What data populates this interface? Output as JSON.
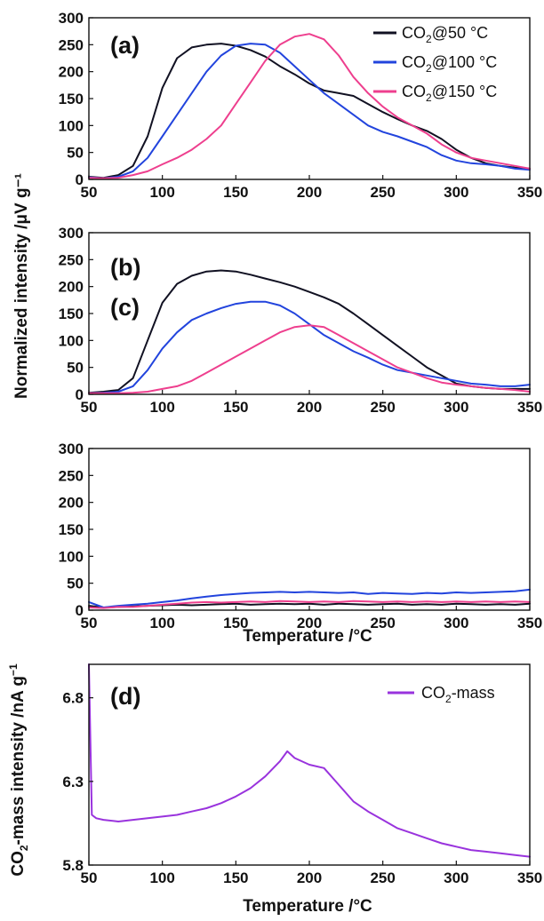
{
  "figure": {
    "ylabel_top": "Normalized intensity /μV g⁻¹",
    "ylabel_bottom_parts": [
      "CO",
      "2",
      "-mass intensity /nA g",
      "−1"
    ],
    "xlabel": "Temperature /°C"
  },
  "colors": {
    "co2_50": "#111122",
    "co2_100": "#2244dd",
    "co2_150": "#ee3f8e",
    "mass": "#9933dd"
  },
  "chart_data": [
    {
      "type": "line",
      "panel_label": "(a)",
      "xlim": [
        50,
        350
      ],
      "ylim": [
        0,
        300
      ],
      "xticks": [
        "50",
        "100",
        "150",
        "200",
        "250",
        "300",
        "350"
      ],
      "yticks": [
        "0",
        "50",
        "100",
        "150",
        "200",
        "250",
        "300"
      ],
      "legend": {
        "placement": "top-right"
      },
      "series": [
        {
          "name": "CO2@50 °C",
          "name_parts": [
            "CO",
            "2",
            "@50 °C"
          ],
          "color": "#111122",
          "x": [
            50,
            60,
            70,
            80,
            90,
            100,
            110,
            120,
            130,
            140,
            150,
            160,
            170,
            180,
            190,
            200,
            210,
            220,
            230,
            240,
            250,
            260,
            270,
            280,
            290,
            300,
            310,
            320,
            330,
            340,
            350
          ],
          "y": [
            5,
            3,
            8,
            25,
            80,
            170,
            225,
            245,
            250,
            252,
            248,
            240,
            228,
            210,
            195,
            178,
            165,
            160,
            155,
            140,
            125,
            112,
            100,
            90,
            75,
            55,
            40,
            30,
            25,
            22,
            20
          ]
        },
        {
          "name": "CO2@100 °C",
          "name_parts": [
            "CO",
            "2",
            "@100 °C"
          ],
          "color": "#2244dd",
          "x": [
            50,
            60,
            70,
            80,
            90,
            100,
            110,
            120,
            130,
            140,
            150,
            160,
            170,
            180,
            190,
            200,
            210,
            220,
            230,
            240,
            250,
            260,
            270,
            280,
            290,
            300,
            310,
            320,
            330,
            340,
            350
          ],
          "y": [
            4,
            2,
            5,
            15,
            40,
            80,
            120,
            160,
            200,
            230,
            248,
            252,
            250,
            235,
            210,
            185,
            160,
            140,
            120,
            100,
            88,
            80,
            70,
            60,
            45,
            35,
            30,
            28,
            25,
            20,
            18
          ]
        },
        {
          "name": "CO2@150 °C",
          "name_parts": [
            "CO",
            "2",
            "@150 °C"
          ],
          "color": "#ee3f8e",
          "x": [
            50,
            60,
            70,
            80,
            90,
            100,
            110,
            120,
            130,
            140,
            150,
            160,
            170,
            180,
            190,
            200,
            210,
            220,
            230,
            240,
            250,
            260,
            270,
            280,
            290,
            300,
            310,
            320,
            330,
            340,
            350
          ],
          "y": [
            3,
            2,
            3,
            8,
            15,
            28,
            40,
            55,
            75,
            100,
            140,
            180,
            220,
            250,
            265,
            270,
            260,
            230,
            190,
            160,
            135,
            115,
            100,
            85,
            65,
            50,
            40,
            35,
            30,
            25,
            20
          ]
        }
      ]
    },
    {
      "type": "line",
      "panel_label": "(b)",
      "xlim": [
        50,
        350
      ],
      "ylim": [
        0,
        300
      ],
      "xticks": [
        "50",
        "100",
        "150",
        "200",
        "250",
        "300",
        "350"
      ],
      "yticks": [
        "0",
        "50",
        "100",
        "150",
        "200",
        "250",
        "300"
      ],
      "series": [
        {
          "color": "#111122",
          "x": [
            50,
            60,
            70,
            80,
            90,
            100,
            110,
            120,
            130,
            140,
            150,
            160,
            170,
            180,
            190,
            200,
            210,
            220,
            230,
            240,
            250,
            260,
            270,
            280,
            290,
            300,
            310,
            320,
            330,
            340,
            350
          ],
          "y": [
            3,
            5,
            8,
            30,
            100,
            170,
            205,
            220,
            228,
            230,
            228,
            222,
            215,
            208,
            200,
            190,
            180,
            168,
            150,
            130,
            110,
            90,
            70,
            50,
            35,
            20,
            15,
            12,
            10,
            10,
            10
          ]
        },
        {
          "color": "#2244dd",
          "x": [
            50,
            60,
            70,
            80,
            90,
            100,
            110,
            120,
            130,
            140,
            150,
            160,
            170,
            180,
            190,
            200,
            210,
            220,
            230,
            240,
            250,
            260,
            270,
            280,
            290,
            300,
            310,
            320,
            330,
            340,
            350
          ],
          "y": [
            2,
            3,
            5,
            15,
            45,
            85,
            115,
            138,
            150,
            160,
            168,
            172,
            172,
            165,
            150,
            130,
            110,
            95,
            80,
            68,
            55,
            45,
            40,
            35,
            30,
            25,
            20,
            18,
            15,
            15,
            18
          ]
        },
        {
          "color": "#ee3f8e",
          "x": [
            50,
            60,
            70,
            80,
            90,
            100,
            110,
            120,
            130,
            140,
            150,
            160,
            170,
            180,
            190,
            200,
            210,
            220,
            230,
            240,
            250,
            260,
            270,
            280,
            290,
            300,
            310,
            320,
            330,
            340,
            350
          ],
          "y": [
            2,
            2,
            2,
            3,
            5,
            10,
            15,
            25,
            40,
            55,
            70,
            85,
            100,
            115,
            125,
            128,
            125,
            110,
            95,
            80,
            65,
            50,
            40,
            30,
            22,
            18,
            15,
            12,
            10,
            8,
            5
          ]
        }
      ]
    },
    {
      "type": "line",
      "panel_label": "(c)",
      "xlim": [
        50,
        350
      ],
      "ylim": [
        0,
        300
      ],
      "xticks": [
        "50",
        "100",
        "150",
        "200",
        "250",
        "300",
        "350"
      ],
      "yticks": [
        "0",
        "50",
        "100",
        "150",
        "200",
        "250",
        "300"
      ],
      "series": [
        {
          "color": "#111122",
          "x": [
            50,
            60,
            70,
            80,
            90,
            100,
            110,
            120,
            130,
            140,
            150,
            160,
            170,
            180,
            190,
            200,
            210,
            220,
            230,
            240,
            250,
            260,
            270,
            280,
            290,
            300,
            310,
            320,
            330,
            340,
            350
          ],
          "y": [
            8,
            5,
            6,
            7,
            8,
            9,
            10,
            9,
            10,
            11,
            12,
            10,
            11,
            12,
            11,
            12,
            10,
            12,
            11,
            10,
            11,
            12,
            10,
            11,
            10,
            12,
            11,
            10,
            11,
            10,
            12
          ]
        },
        {
          "color": "#2244dd",
          "x": [
            50,
            60,
            70,
            80,
            90,
            100,
            110,
            120,
            130,
            140,
            150,
            160,
            170,
            180,
            190,
            200,
            210,
            220,
            230,
            240,
            250,
            260,
            270,
            280,
            290,
            300,
            310,
            320,
            330,
            340,
            350
          ],
          "y": [
            15,
            5,
            8,
            10,
            12,
            15,
            18,
            22,
            25,
            28,
            30,
            32,
            33,
            34,
            33,
            34,
            33,
            32,
            33,
            30,
            32,
            31,
            30,
            32,
            31,
            33,
            32,
            33,
            34,
            35,
            38
          ]
        },
        {
          "color": "#ee3f8e",
          "x": [
            50,
            60,
            70,
            80,
            90,
            100,
            110,
            120,
            130,
            140,
            150,
            160,
            170,
            180,
            190,
            200,
            210,
            220,
            230,
            240,
            250,
            260,
            270,
            280,
            290,
            300,
            310,
            320,
            330,
            340,
            350
          ],
          "y": [
            5,
            4,
            6,
            6,
            8,
            10,
            12,
            14,
            15,
            14,
            15,
            16,
            15,
            17,
            16,
            15,
            16,
            15,
            17,
            16,
            15,
            16,
            15,
            16,
            15,
            16,
            15,
            16,
            15,
            16,
            15
          ]
        }
      ]
    },
    {
      "type": "line",
      "panel_label": "(d)",
      "xlim": [
        50,
        350
      ],
      "ylim": [
        5.8,
        7.0
      ],
      "xticks": [
        "50",
        "100",
        "150",
        "200",
        "250",
        "300",
        "350"
      ],
      "yticks": [
        "5.8",
        "6.3",
        "6.8"
      ],
      "ytick_values": [
        5.8,
        6.3,
        6.8
      ],
      "legend": {
        "placement": "top-right"
      },
      "series": [
        {
          "name": "CO2-mass",
          "name_parts": [
            "CO",
            "2",
            "-mass"
          ],
          "color": "#9933dd",
          "x": [
            50,
            52,
            55,
            60,
            70,
            80,
            90,
            100,
            110,
            120,
            130,
            140,
            150,
            160,
            170,
            180,
            185,
            190,
            200,
            210,
            220,
            230,
            240,
            250,
            260,
            270,
            280,
            290,
            300,
            310,
            320,
            330,
            340,
            350
          ],
          "y": [
            7.0,
            6.1,
            6.08,
            6.07,
            6.06,
            6.07,
            6.08,
            6.09,
            6.1,
            6.12,
            6.14,
            6.17,
            6.21,
            6.26,
            6.33,
            6.42,
            6.48,
            6.44,
            6.4,
            6.38,
            6.28,
            6.18,
            6.12,
            6.07,
            6.02,
            5.99,
            5.96,
            5.93,
            5.91,
            5.89,
            5.88,
            5.87,
            5.86,
            5.85
          ]
        }
      ]
    }
  ]
}
